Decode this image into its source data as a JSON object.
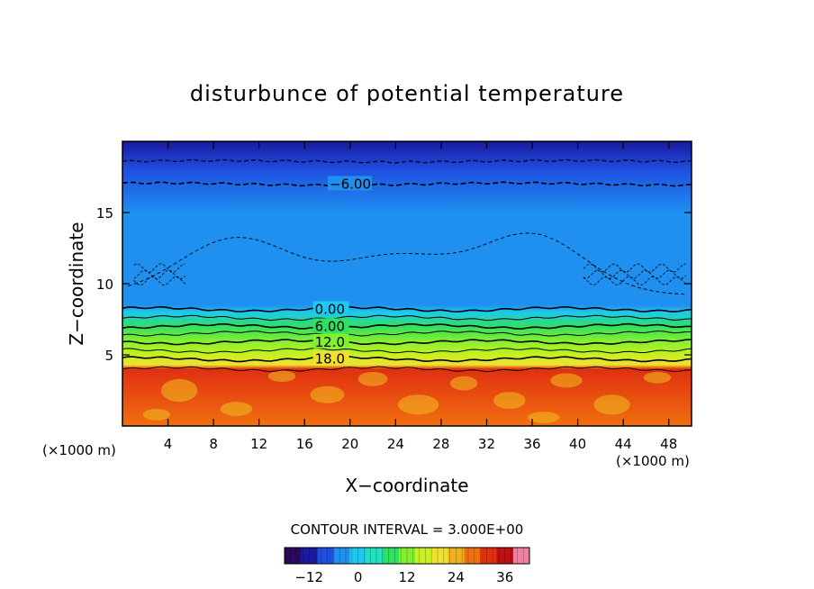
{
  "chart_data": {
    "type": "heatmap",
    "title": "disturbunce of potential temperature",
    "xlabel": "X−coordinate",
    "ylabel": "Z−coordinate",
    "x_unit_left": "(×1000 m)",
    "x_unit_right": "(×1000 m)",
    "xlim": [
      0,
      50
    ],
    "ylim": [
      0,
      20
    ],
    "xticks": [
      4,
      8,
      12,
      16,
      20,
      24,
      28,
      32,
      36,
      40,
      44,
      48
    ],
    "xtick_labels": [
      "4",
      "8",
      "12",
      "16",
      "20",
      "24",
      "28",
      "32",
      "36",
      "40",
      "44",
      "48"
    ],
    "yticks": [
      5,
      10,
      15
    ],
    "ytick_labels": [
      "5",
      "10",
      "15"
    ],
    "contour_labels": [
      {
        "text": "−6.00",
        "x": 18.2,
        "y": 17.0
      },
      {
        "text": "0.00",
        "x": 16.9,
        "y": 8.2
      },
      {
        "text": "6.00",
        "x": 16.9,
        "y": 7.0
      },
      {
        "text": "12.0",
        "x": 16.9,
        "y": 5.9
      },
      {
        "text": "18.0",
        "x": 16.9,
        "y": 4.7
      }
    ],
    "field_profile": [
      {
        "z": 0,
        "value": 28
      },
      {
        "z": 4,
        "value": 30
      },
      {
        "z": 4.3,
        "value": 20
      },
      {
        "z": 5,
        "value": 17
      },
      {
        "z": 6,
        "value": 12
      },
      {
        "z": 7,
        "value": 6
      },
      {
        "z": 8,
        "value": 0
      },
      {
        "z": 8.5,
        "value": -3
      },
      {
        "z": 12,
        "value": -4
      },
      {
        "z": 15,
        "value": -5
      },
      {
        "z": 18,
        "value": -8
      },
      {
        "z": 20,
        "value": -12
      }
    ],
    "contour_interval_text": "CONTOUR INTERVAL = 3.000E+00",
    "colorbar": {
      "min": -18,
      "max": 42,
      "ticks": [
        -12,
        0,
        12,
        24,
        36
      ],
      "tick_labels": [
        "−12",
        "0",
        "12",
        "24",
        "36"
      ],
      "colors": [
        "#2a0a5a",
        "#1a1aa0",
        "#1f4fe0",
        "#1f8ff0",
        "#1ec8f0",
        "#20e0c0",
        "#30e060",
        "#80f030",
        "#c8f020",
        "#f0e030",
        "#f0b020",
        "#f07010",
        "#e03010",
        "#c01010",
        "#f080a0"
      ]
    },
    "colors": {
      "top": "#1f44e8",
      "upper": "#1f8ff0",
      "middle": "#13c7f5",
      "lower_band": "#20d8e8",
      "green": "#33dd33",
      "yellow_green": "#9eef20",
      "bottom": "#f5dd22",
      "bottom_patches": "#f0c020"
    }
  }
}
